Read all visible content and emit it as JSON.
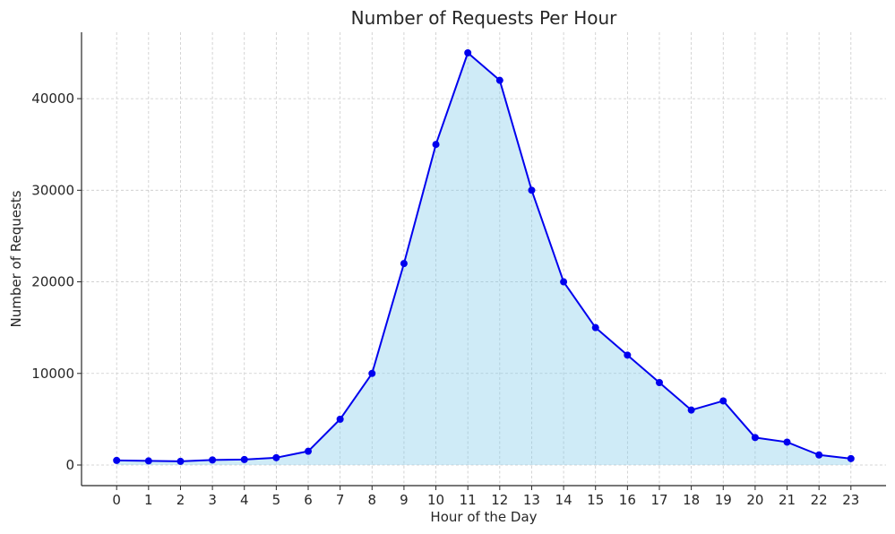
{
  "chart_data": {
    "type": "area",
    "title": "Number of Requests Per Hour",
    "xlabel": "Hour of the Day",
    "ylabel": "Number of Requests",
    "x": [
      0,
      1,
      2,
      3,
      4,
      5,
      6,
      7,
      8,
      9,
      10,
      11,
      12,
      13,
      14,
      15,
      16,
      17,
      18,
      19,
      20,
      21,
      22,
      23
    ],
    "series": [
      {
        "values": [
          500,
          450,
          400,
          550,
          600,
          800,
          1500,
          5000,
          10000,
          22000,
          35000,
          45000,
          42000,
          30000,
          20000,
          15000,
          12000,
          9000,
          6000,
          7000,
          3000,
          2500,
          1100,
          700
        ]
      }
    ],
    "xlim": [
      -1.1,
      24.1
    ],
    "ylim": [
      -2250,
      47250
    ],
    "x_ticks": [
      0,
      1,
      2,
      3,
      4,
      5,
      6,
      7,
      8,
      9,
      10,
      11,
      12,
      13,
      14,
      15,
      16,
      17,
      18,
      19,
      20,
      21,
      22,
      23
    ],
    "y_ticks": [
      0,
      10000,
      20000,
      30000,
      40000
    ],
    "grid": true,
    "line_color": "#0000ee",
    "fill_color": "#87ceeb",
    "fill_opacity": 0.4
  }
}
